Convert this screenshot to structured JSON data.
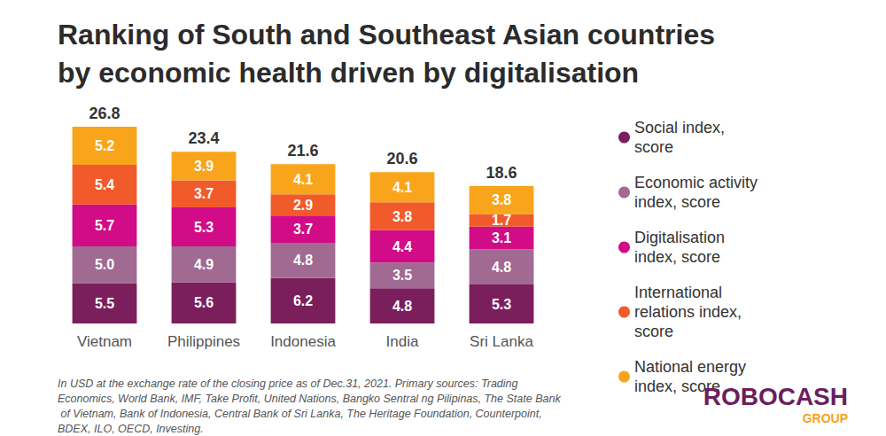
{
  "chart_data": {
    "type": "bar",
    "title": "Ranking of South and Southeast Asian countries by economic health driven by digitalisation",
    "categories": [
      "Vietnam",
      "Philippines",
      "Indonesia",
      "India",
      "Sri Lanka"
    ],
    "series": [
      {
        "name": "Social index, score",
        "color": "#7a1f5c",
        "values": [
          5.5,
          5.6,
          6.2,
          4.8,
          5.3
        ]
      },
      {
        "name": "Economic activity index, score",
        "color": "#a06a93",
        "values": [
          5.0,
          4.9,
          4.8,
          3.5,
          4.8
        ],
        "value_labels": [
          "5.0",
          "4.9",
          "4.8",
          "3.5",
          "4.8"
        ]
      },
      {
        "name": "Digitalisation index, score",
        "color": "#d10c86",
        "values": [
          5.7,
          5.3,
          3.7,
          4.4,
          3.1
        ]
      },
      {
        "name": "International relations index, score",
        "color": "#f15a2b",
        "values": [
          5.4,
          3.7,
          2.9,
          3.8,
          1.7
        ]
      },
      {
        "name": "National energy index, score",
        "color": "#f9a51b",
        "values": [
          5.2,
          3.9,
          4.1,
          4.1,
          3.8
        ]
      }
    ],
    "totals": [
      26.8,
      23.4,
      21.6,
      20.6,
      18.6
    ],
    "stacked": true,
    "data_labels": true,
    "tick_labels": "x",
    "grid": false,
    "legend": "right",
    "ylim": [
      0,
      26.8
    ],
    "annotations": [
      "In USD at the exchange rate of the closing price as of Dec.31, 2021. Primary sources: Trading Economics, World Bank, IMF, Take Profit, United Nations, Bangko Sentral ng Pilipinas, The State Bank of Vietnam, Bank of Indonesia, Central Bank of Sri Lanka, The Heritage Foundation, Counterpoint, BDEX, ILO, OECD, Investing.",
      "ROBOCASH",
      "GROUP"
    ]
  }
}
